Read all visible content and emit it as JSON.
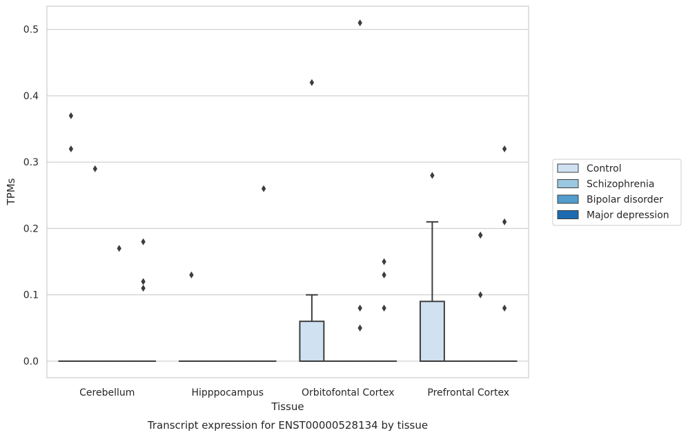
{
  "caption": "Transcript expression for ENST00000528134 by tissue",
  "chart_data": {
    "type": "box",
    "xlabel": "Tissue",
    "ylabel": "TPMs",
    "ylim": [
      -0.025,
      0.535
    ],
    "yticks": [
      0.0,
      0.1,
      0.2,
      0.3,
      0.4,
      0.5
    ],
    "ytick_labels": [
      "0.0",
      "0.1",
      "0.2",
      "0.3",
      "0.4",
      "0.5"
    ],
    "grid": "horizontal",
    "legend_position": "right",
    "categories": [
      "Cerebellum",
      "Hipppocampus",
      "Orbitofontal Cortex",
      "Prefrontal Cortex"
    ],
    "series": [
      {
        "name": "Control",
        "color": "#d0e1f2",
        "boxes": [
          {
            "q1": 0,
            "median": 0,
            "q3": 0,
            "whisker_low": 0,
            "whisker_high": 0,
            "outliers": [
              0.37,
              0.32
            ]
          },
          {
            "q1": 0,
            "median": 0,
            "q3": 0,
            "whisker_low": 0,
            "whisker_high": 0,
            "outliers": [
              0.13
            ]
          },
          {
            "q1": 0,
            "median": 0,
            "q3": 0.06,
            "whisker_low": 0,
            "whisker_high": 0.1,
            "outliers": [
              0.42
            ]
          },
          {
            "q1": 0,
            "median": 0,
            "q3": 0.09,
            "whisker_low": 0,
            "whisker_high": 0.21,
            "outliers": [
              0.28
            ]
          }
        ]
      },
      {
        "name": "Schizophrenia",
        "color": "#9ac8e0",
        "boxes": [
          {
            "q1": 0,
            "median": 0,
            "q3": 0,
            "whisker_low": 0,
            "whisker_high": 0,
            "outliers": [
              0.29
            ]
          },
          {
            "q1": 0,
            "median": 0,
            "q3": 0,
            "whisker_low": 0,
            "whisker_high": 0,
            "outliers": []
          },
          {
            "q1": 0,
            "median": 0,
            "q3": 0,
            "whisker_low": 0,
            "whisker_high": 0,
            "outliers": []
          },
          {
            "q1": 0,
            "median": 0,
            "q3": 0,
            "whisker_low": 0,
            "whisker_high": 0,
            "outliers": []
          }
        ]
      },
      {
        "name": "Bipolar disorder",
        "color": "#529dcc",
        "boxes": [
          {
            "q1": 0,
            "median": 0,
            "q3": 0,
            "whisker_low": 0,
            "whisker_high": 0,
            "outliers": [
              0.17
            ]
          },
          {
            "q1": 0,
            "median": 0,
            "q3": 0,
            "whisker_low": 0,
            "whisker_high": 0,
            "outliers": []
          },
          {
            "q1": 0,
            "median": 0,
            "q3": 0,
            "whisker_low": 0,
            "whisker_high": 0,
            "outliers": [
              0.51,
              0.08,
              0.05
            ]
          },
          {
            "q1": 0,
            "median": 0,
            "q3": 0,
            "whisker_low": 0,
            "whisker_high": 0,
            "outliers": [
              0.19,
              0.19,
              0.1
            ]
          }
        ]
      },
      {
        "name": "Major depression",
        "color": "#1c6aaf",
        "boxes": [
          {
            "q1": 0,
            "median": 0,
            "q3": 0,
            "whisker_low": 0,
            "whisker_high": 0,
            "outliers": [
              0.18,
              0.12,
              0.11
            ]
          },
          {
            "q1": 0,
            "median": 0,
            "q3": 0,
            "whisker_low": 0,
            "whisker_high": 0,
            "outliers": [
              0.26
            ]
          },
          {
            "q1": 0,
            "median": 0,
            "q3": 0,
            "whisker_low": 0,
            "whisker_high": 0,
            "outliers": [
              0.15,
              0.13,
              0.08
            ]
          },
          {
            "q1": 0,
            "median": 0,
            "q3": 0,
            "whisker_low": 0,
            "whisker_high": 0,
            "outliers": [
              0.32,
              0.21,
              0.08
            ]
          }
        ]
      }
    ]
  }
}
